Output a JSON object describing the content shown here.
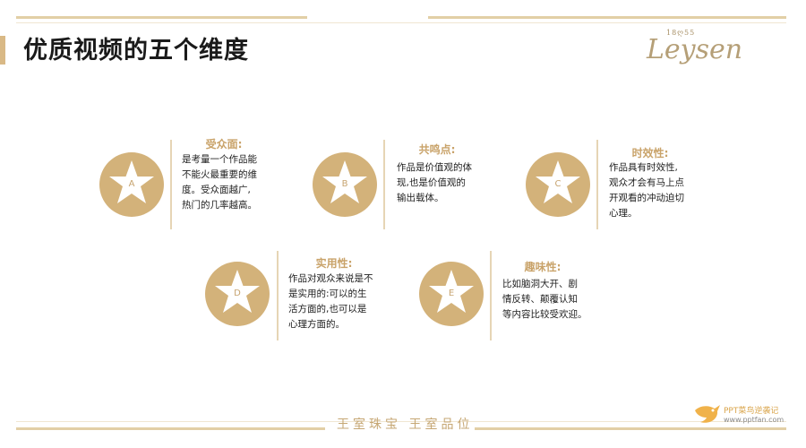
{
  "slide": {
    "title": "优质视频的五个维度",
    "logo": {
      "year": "18ღ55",
      "brand": "Leysen"
    },
    "footer": "王室珠宝 王室品位",
    "watermark": {
      "line1": "PPT菜鸟逆袭记",
      "line2": "www.pptfan.com"
    },
    "colors": {
      "accent": "#d3b27a",
      "title_gold": "#c9a36a",
      "line_gold": "#e2cfa6"
    }
  },
  "cards": [
    {
      "letter": "A",
      "title": "受众面:",
      "lines": [
        "是考量一个作品能",
        "不能火最重要的维",
        "度。受众面越广,",
        "热门的几率越高。"
      ]
    },
    {
      "letter": "B",
      "title": "共鸣点:",
      "lines": [
        "作品是价值观的体",
        "现,也是价值观的",
        "输出载体。"
      ]
    },
    {
      "letter": "C",
      "title": "时效性:",
      "lines": [
        "作品具有时效性,",
        "观众才会有马上点",
        "开观看的冲动迫切",
        "心理。"
      ]
    },
    {
      "letter": "D",
      "title": "实用性:",
      "lines": [
        "作品对观众来说是不",
        "是实用的:可以的生",
        "活方面的,也可以是",
        "心理方面的。"
      ]
    },
    {
      "letter": "E",
      "title": "趣味性:",
      "lines": [
        "比如脑洞大开、剧",
        "情反转、颠覆认知",
        "等内容比较受欢迎。"
      ]
    }
  ]
}
